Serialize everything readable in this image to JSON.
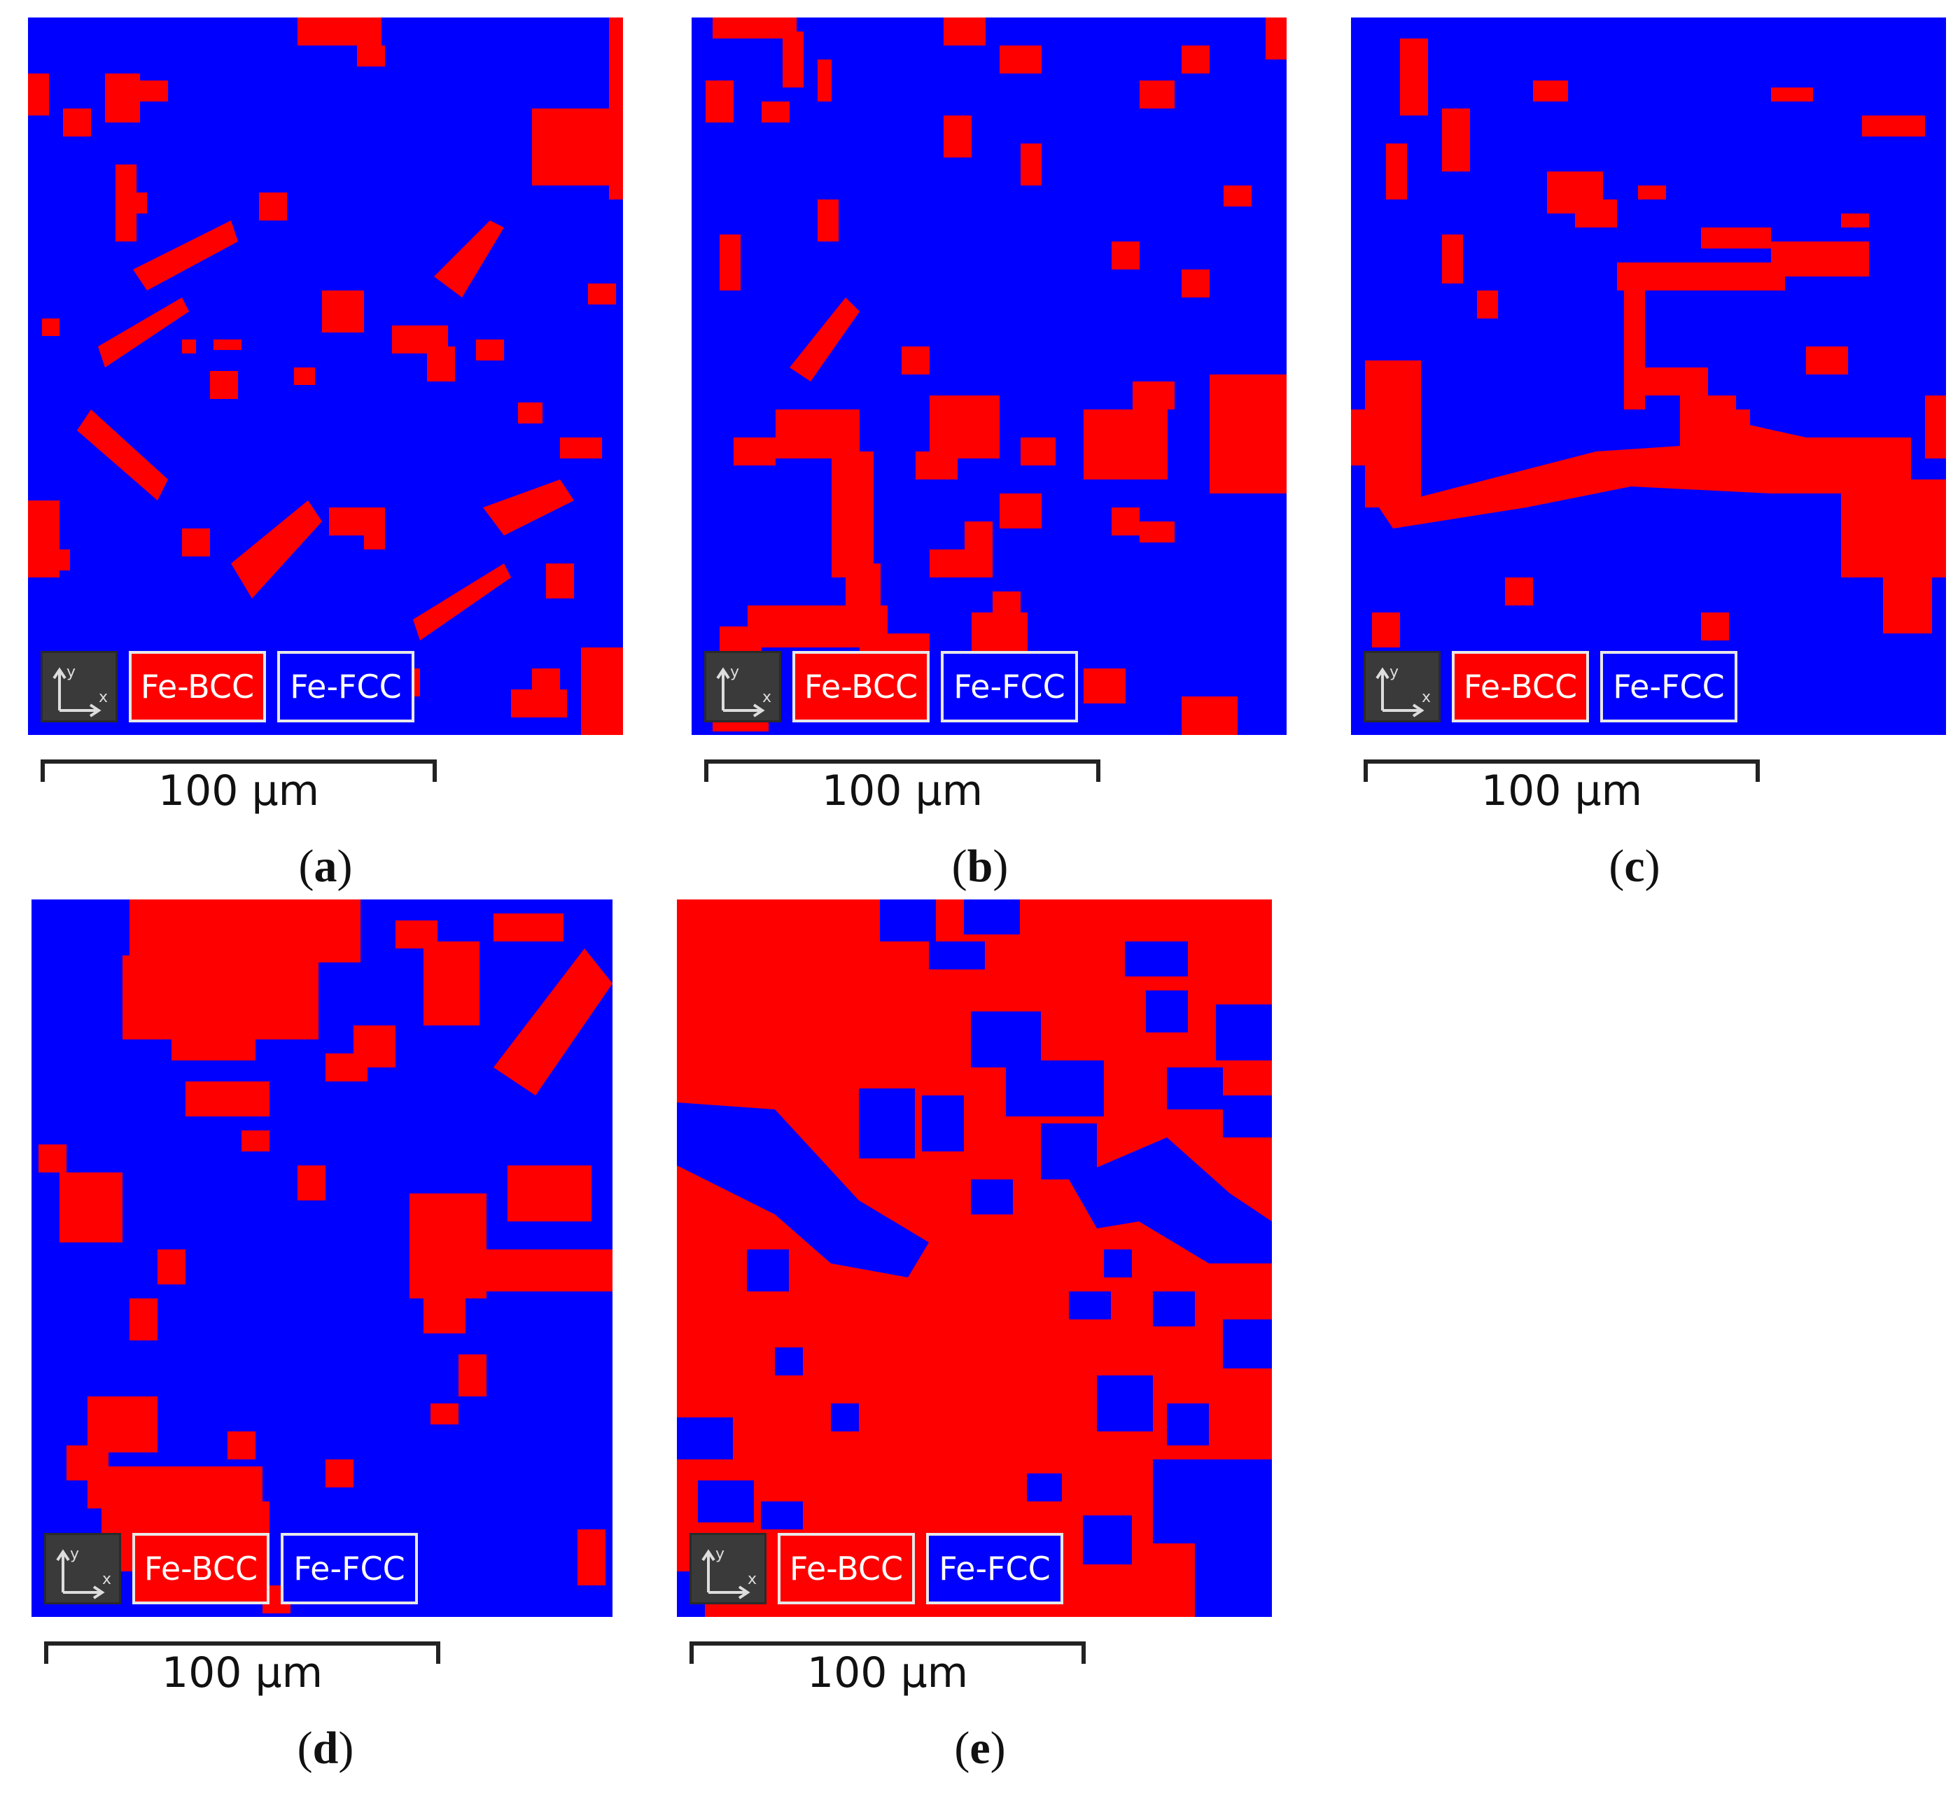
{
  "colors": {
    "bcc": "#ff0000",
    "fcc": "#0000ff",
    "axis_bg": "#3a3a3a"
  },
  "legend": {
    "bcc_label": "Fe-BCC",
    "fcc_label": "Fe-FCC",
    "axis_icon": "xy-axes-icon"
  },
  "scale_label": "100 µm",
  "panels": [
    {
      "id": "a",
      "caption_open": "(",
      "caption_letter": "a",
      "caption_close": ")",
      "matrix": "fcc",
      "bcc_fraction": 0.1
    },
    {
      "id": "b",
      "caption_open": "(",
      "caption_letter": "b",
      "caption_close": ")",
      "matrix": "fcc",
      "bcc_fraction": 0.15
    },
    {
      "id": "c",
      "caption_open": "(",
      "caption_letter": "c",
      "caption_close": ")",
      "matrix": "fcc",
      "bcc_fraction": 0.13
    },
    {
      "id": "d",
      "caption_open": "(",
      "caption_letter": "d",
      "caption_close": ")",
      "matrix": "fcc",
      "bcc_fraction": 0.22
    },
    {
      "id": "e",
      "caption_open": "(",
      "caption_letter": "e",
      "caption_close": ")",
      "matrix": "bcc",
      "bcc_fraction": 0.78
    }
  ]
}
